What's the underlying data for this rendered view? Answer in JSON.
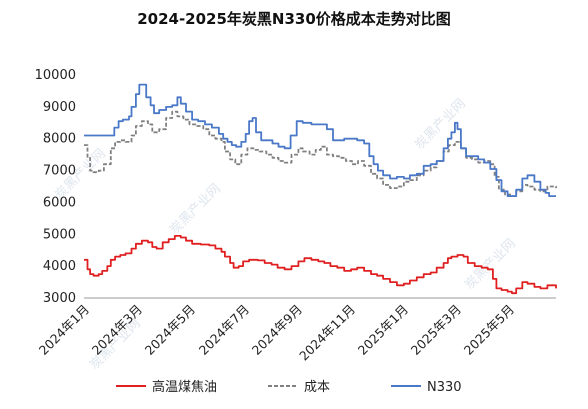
{
  "chart_data": {
    "type": "line",
    "title": "2024-2025年炭黑N330价格成本走势对比图",
    "xlabel": "",
    "ylabel": "",
    "ylim": [
      3000,
      10000
    ],
    "yticks": [
      3000,
      4000,
      5000,
      6000,
      7000,
      8000,
      9000,
      10000
    ],
    "xticks": [
      "2024年1月",
      "2024年3月",
      "2024年5月",
      "2024年7月",
      "2024年9月",
      "2024年11月",
      "2025年1月",
      "2025年3月",
      "2025年5月"
    ],
    "x_start": "2024-01-01",
    "x_end": "2025-06-30",
    "grid": false,
    "legend_position": "bottom",
    "watermark": "炭黑产业网",
    "series": [
      {
        "name": "高温煤焦油",
        "color": "#e02020",
        "dash": "solid",
        "points": [
          [
            "2024-01-01",
            4200
          ],
          [
            "2024-01-05",
            3900
          ],
          [
            "2024-01-08",
            3750
          ],
          [
            "2024-01-12",
            3700
          ],
          [
            "2024-01-18",
            3750
          ],
          [
            "2024-01-22",
            3850
          ],
          [
            "2024-01-28",
            4000
          ],
          [
            "2024-02-01",
            4200
          ],
          [
            "2024-02-06",
            4300
          ],
          [
            "2024-02-12",
            4350
          ],
          [
            "2024-02-18",
            4400
          ],
          [
            "2024-02-25",
            4550
          ],
          [
            "2024-03-01",
            4700
          ],
          [
            "2024-03-08",
            4800
          ],
          [
            "2024-03-15",
            4750
          ],
          [
            "2024-03-20",
            4600
          ],
          [
            "2024-03-25",
            4550
          ],
          [
            "2024-04-01",
            4750
          ],
          [
            "2024-04-08",
            4850
          ],
          [
            "2024-04-15",
            4950
          ],
          [
            "2024-04-22",
            4900
          ],
          [
            "2024-04-28",
            4800
          ],
          [
            "2024-05-05",
            4700
          ],
          [
            "2024-05-15",
            4680
          ],
          [
            "2024-05-25",
            4650
          ],
          [
            "2024-06-01",
            4550
          ],
          [
            "2024-06-08",
            4450
          ],
          [
            "2024-06-12",
            4300
          ],
          [
            "2024-06-18",
            4100
          ],
          [
            "2024-06-22",
            3950
          ],
          [
            "2024-06-28",
            4000
          ],
          [
            "2024-07-03",
            4150
          ],
          [
            "2024-07-10",
            4200
          ],
          [
            "2024-07-20",
            4180
          ],
          [
            "2024-07-28",
            4100
          ],
          [
            "2024-08-05",
            4050
          ],
          [
            "2024-08-12",
            3950
          ],
          [
            "2024-08-20",
            3900
          ],
          [
            "2024-08-28",
            4000
          ],
          [
            "2024-09-05",
            4150
          ],
          [
            "2024-09-12",
            4250
          ],
          [
            "2024-09-20",
            4200
          ],
          [
            "2024-09-28",
            4150
          ],
          [
            "2024-10-05",
            4100
          ],
          [
            "2024-10-12",
            4000
          ],
          [
            "2024-10-20",
            3950
          ],
          [
            "2024-10-28",
            3850
          ],
          [
            "2024-11-05",
            3900
          ],
          [
            "2024-11-12",
            3950
          ],
          [
            "2024-11-20",
            3850
          ],
          [
            "2024-11-28",
            3750
          ],
          [
            "2024-12-05",
            3700
          ],
          [
            "2024-12-12",
            3600
          ],
          [
            "2024-12-20",
            3500
          ],
          [
            "2024-12-28",
            3400
          ],
          [
            "2025-01-05",
            3450
          ],
          [
            "2025-01-12",
            3550
          ],
          [
            "2025-01-20",
            3650
          ],
          [
            "2025-01-28",
            3750
          ],
          [
            "2025-02-05",
            3800
          ],
          [
            "2025-02-12",
            3950
          ],
          [
            "2025-02-20",
            4100
          ],
          [
            "2025-02-25",
            4250
          ],
          [
            "2025-03-01",
            4300
          ],
          [
            "2025-03-08",
            4350
          ],
          [
            "2025-03-15",
            4300
          ],
          [
            "2025-03-20",
            4100
          ],
          [
            "2025-03-28",
            4000
          ],
          [
            "2025-04-05",
            3950
          ],
          [
            "2025-04-12",
            3900
          ],
          [
            "2025-04-18",
            3600
          ],
          [
            "2025-04-22",
            3300
          ],
          [
            "2025-04-28",
            3250
          ],
          [
            "2025-05-05",
            3200
          ],
          [
            "2025-05-10",
            3150
          ],
          [
            "2025-05-15",
            3300
          ],
          [
            "2025-05-22",
            3500
          ],
          [
            "2025-05-28",
            3450
          ],
          [
            "2025-06-05",
            3350
          ],
          [
            "2025-06-12",
            3300
          ],
          [
            "2025-06-20",
            3400
          ],
          [
            "2025-06-30",
            3300
          ]
        ]
      },
      {
        "name": "成本",
        "color": "#808080",
        "dash": "dashed",
        "points": [
          [
            "2024-01-01",
            7800
          ],
          [
            "2024-01-05",
            7400
          ],
          [
            "2024-01-08",
            7000
          ],
          [
            "2024-01-12",
            6950
          ],
          [
            "2024-01-18",
            7000
          ],
          [
            "2024-01-24",
            7200
          ],
          [
            "2024-02-01",
            7700
          ],
          [
            "2024-02-06",
            7900
          ],
          [
            "2024-02-12",
            7950
          ],
          [
            "2024-02-18",
            7900
          ],
          [
            "2024-02-25",
            8100
          ],
          [
            "2024-03-01",
            8400
          ],
          [
            "2024-03-08",
            8550
          ],
          [
            "2024-03-15",
            8450
          ],
          [
            "2024-03-20",
            8200
          ],
          [
            "2024-03-28",
            8300
          ],
          [
            "2024-04-05",
            8650
          ],
          [
            "2024-04-12",
            8850
          ],
          [
            "2024-04-18",
            8700
          ],
          [
            "2024-04-25",
            8600
          ],
          [
            "2024-05-02",
            8450
          ],
          [
            "2024-05-10",
            8400
          ],
          [
            "2024-05-18",
            8300
          ],
          [
            "2024-05-25",
            8100
          ],
          [
            "2024-06-01",
            8000
          ],
          [
            "2024-06-08",
            7900
          ],
          [
            "2024-06-12",
            7600
          ],
          [
            "2024-06-18",
            7350
          ],
          [
            "2024-06-24",
            7200
          ],
          [
            "2024-07-01",
            7500
          ],
          [
            "2024-07-08",
            7700
          ],
          [
            "2024-07-15",
            7650
          ],
          [
            "2024-07-22",
            7600
          ],
          [
            "2024-07-30",
            7500
          ],
          [
            "2024-08-06",
            7400
          ],
          [
            "2024-08-13",
            7300
          ],
          [
            "2024-08-20",
            7250
          ],
          [
            "2024-08-28",
            7500
          ],
          [
            "2024-09-05",
            7700
          ],
          [
            "2024-09-10",
            7600
          ],
          [
            "2024-09-18",
            7500
          ],
          [
            "2024-09-25",
            7650
          ],
          [
            "2024-10-01",
            7750
          ],
          [
            "2024-10-08",
            7500
          ],
          [
            "2024-10-15",
            7450
          ],
          [
            "2024-10-22",
            7400
          ],
          [
            "2024-10-30",
            7300
          ],
          [
            "2024-11-06",
            7200
          ],
          [
            "2024-11-13",
            7300
          ],
          [
            "2024-11-20",
            7150
          ],
          [
            "2024-11-28",
            6900
          ],
          [
            "2024-12-05",
            6750
          ],
          [
            "2024-12-12",
            6550
          ],
          [
            "2024-12-20",
            6450
          ],
          [
            "2024-12-28",
            6500
          ],
          [
            "2025-01-05",
            6650
          ],
          [
            "2025-01-12",
            6700
          ],
          [
            "2025-01-20",
            6850
          ],
          [
            "2025-01-28",
            7000
          ],
          [
            "2025-02-05",
            7100
          ],
          [
            "2025-02-12",
            7300
          ],
          [
            "2025-02-20",
            7600
          ],
          [
            "2025-02-26",
            7800
          ],
          [
            "2025-03-05",
            7900
          ],
          [
            "2025-03-12",
            7700
          ],
          [
            "2025-03-18",
            7400
          ],
          [
            "2025-03-25",
            7350
          ],
          [
            "2025-04-01",
            7250
          ],
          [
            "2025-04-08",
            7300
          ],
          [
            "2025-04-15",
            7200
          ],
          [
            "2025-04-20",
            6800
          ],
          [
            "2025-04-25",
            6400
          ],
          [
            "2025-05-02",
            6250
          ],
          [
            "2025-05-08",
            6200
          ],
          [
            "2025-05-15",
            6350
          ],
          [
            "2025-05-22",
            6550
          ],
          [
            "2025-05-28",
            6500
          ],
          [
            "2025-06-05",
            6400
          ],
          [
            "2025-06-12",
            6350
          ],
          [
            "2025-06-20",
            6500
          ],
          [
            "2025-06-30",
            6450
          ]
        ]
      },
      {
        "name": "N330",
        "color": "#4a78c8",
        "dash": "solid",
        "points": [
          [
            "2024-01-01",
            8100
          ],
          [
            "2024-01-15",
            8100
          ],
          [
            "2024-02-01",
            8100
          ],
          [
            "2024-02-05",
            8350
          ],
          [
            "2024-02-10",
            8550
          ],
          [
            "2024-02-15",
            8600
          ],
          [
            "2024-02-22",
            8700
          ],
          [
            "2024-02-25",
            9000
          ],
          [
            "2024-03-01",
            9400
          ],
          [
            "2024-03-05",
            9700
          ],
          [
            "2024-03-10",
            9700
          ],
          [
            "2024-03-13",
            9300
          ],
          [
            "2024-03-18",
            9050
          ],
          [
            "2024-03-22",
            8800
          ],
          [
            "2024-03-28",
            8900
          ],
          [
            "2024-04-05",
            9000
          ],
          [
            "2024-04-12",
            9050
          ],
          [
            "2024-04-18",
            9300
          ],
          [
            "2024-04-22",
            9100
          ],
          [
            "2024-04-28",
            8850
          ],
          [
            "2024-05-05",
            8600
          ],
          [
            "2024-05-12",
            8550
          ],
          [
            "2024-05-20",
            8450
          ],
          [
            "2024-05-28",
            8350
          ],
          [
            "2024-06-05",
            8150
          ],
          [
            "2024-06-10",
            8000
          ],
          [
            "2024-06-15",
            7900
          ],
          [
            "2024-06-20",
            7800
          ],
          [
            "2024-06-25",
            7750
          ],
          [
            "2024-07-01",
            7900
          ],
          [
            "2024-07-06",
            8150
          ],
          [
            "2024-07-10",
            8550
          ],
          [
            "2024-07-14",
            8650
          ],
          [
            "2024-07-18",
            8200
          ],
          [
            "2024-07-24",
            7950
          ],
          [
            "2024-07-30",
            7950
          ],
          [
            "2024-08-06",
            7850
          ],
          [
            "2024-08-13",
            7750
          ],
          [
            "2024-08-20",
            7700
          ],
          [
            "2024-08-27",
            8100
          ],
          [
            "2024-09-03",
            8550
          ],
          [
            "2024-09-10",
            8500
          ],
          [
            "2024-09-20",
            8450
          ],
          [
            "2024-10-01",
            8450
          ],
          [
            "2024-10-08",
            8300
          ],
          [
            "2024-10-15",
            7950
          ],
          [
            "2024-10-22",
            7950
          ],
          [
            "2024-10-28",
            8000
          ],
          [
            "2024-11-05",
            8000
          ],
          [
            "2024-11-12",
            7950
          ],
          [
            "2024-11-20",
            7850
          ],
          [
            "2024-11-26",
            7450
          ],
          [
            "2024-12-01",
            7200
          ],
          [
            "2024-12-06",
            7000
          ],
          [
            "2024-12-12",
            6850
          ],
          [
            "2024-12-20",
            6750
          ],
          [
            "2024-12-28",
            6800
          ],
          [
            "2025-01-05",
            6750
          ],
          [
            "2025-01-12",
            6850
          ],
          [
            "2025-01-20",
            6900
          ],
          [
            "2025-01-28",
            7150
          ],
          [
            "2025-02-05",
            7200
          ],
          [
            "2025-02-12",
            7300
          ],
          [
            "2025-02-20",
            7700
          ],
          [
            "2025-02-25",
            8000
          ],
          [
            "2025-03-01",
            8200
          ],
          [
            "2025-03-05",
            8500
          ],
          [
            "2025-03-08",
            8300
          ],
          [
            "2025-03-12",
            7700
          ],
          [
            "2025-03-18",
            7450
          ],
          [
            "2025-03-25",
            7450
          ],
          [
            "2025-04-01",
            7350
          ],
          [
            "2025-04-08",
            7250
          ],
          [
            "2025-04-15",
            7050
          ],
          [
            "2025-04-22",
            6700
          ],
          [
            "2025-04-28",
            6350
          ],
          [
            "2025-05-05",
            6200
          ],
          [
            "2025-05-10",
            6200
          ],
          [
            "2025-05-15",
            6400
          ],
          [
            "2025-05-22",
            6750
          ],
          [
            "2025-05-28",
            6850
          ],
          [
            "2025-06-05",
            6650
          ],
          [
            "2025-06-12",
            6400
          ],
          [
            "2025-06-18",
            6300
          ],
          [
            "2025-06-22",
            6200
          ],
          [
            "2025-06-30",
            6200
          ]
        ]
      }
    ]
  }
}
